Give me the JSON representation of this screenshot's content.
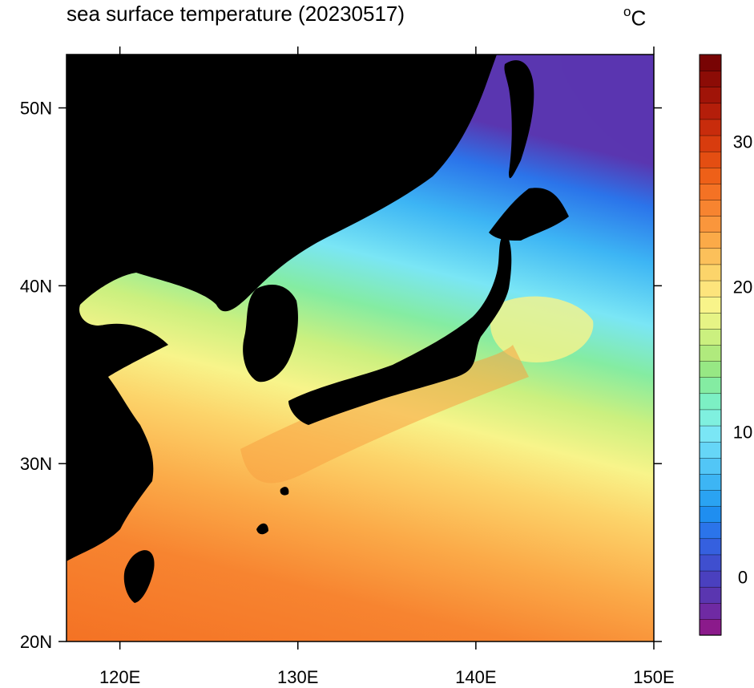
{
  "title": "sea surface temperature (20230517)",
  "unit_label": "C",
  "unit_degree": "o",
  "axes": {
    "lon_ticks": [
      {
        "value": 120,
        "label": "120E"
      },
      {
        "value": 130,
        "label": "130E"
      },
      {
        "value": 140,
        "label": "140E"
      },
      {
        "value": 150,
        "label": "150E"
      }
    ],
    "lat_ticks": [
      {
        "value": 20,
        "label": "20N"
      },
      {
        "value": 30,
        "label": "30N"
      },
      {
        "value": 40,
        "label": "40N"
      },
      {
        "value": 50,
        "label": "50N"
      }
    ],
    "lon_range": [
      117,
      150
    ],
    "lat_range": [
      20,
      53
    ]
  },
  "colorbar": {
    "range": [
      -4,
      36
    ],
    "ticks": [
      {
        "value": 0,
        "label": "0"
      },
      {
        "value": 10,
        "label": "10"
      },
      {
        "value": 20,
        "label": "20"
      },
      {
        "value": 30,
        "label": "30"
      }
    ],
    "colors": [
      "#8b1a8b",
      "#6f2aa3",
      "#5a36b0",
      "#4a40bf",
      "#3f4fcf",
      "#3560df",
      "#2b74ea",
      "#1f8ef0",
      "#2aa3f2",
      "#3db5f4",
      "#52c6f6",
      "#66d6f7",
      "#7ae6f5",
      "#7ff0df",
      "#7cf0c4",
      "#84eca2",
      "#97e884",
      "#b0ea7d",
      "#cbf07f",
      "#e6f485",
      "#f8f48a",
      "#fde47c",
      "#fcd46a",
      "#fcc05a",
      "#fbaa48",
      "#fa963c",
      "#f78430",
      "#f47224",
      "#ee6018",
      "#e44e12",
      "#d83c0e",
      "#c82c0c",
      "#b41e0a",
      "#a01408",
      "#8c0c06",
      "#780404"
    ]
  },
  "land_color": "#000000"
}
